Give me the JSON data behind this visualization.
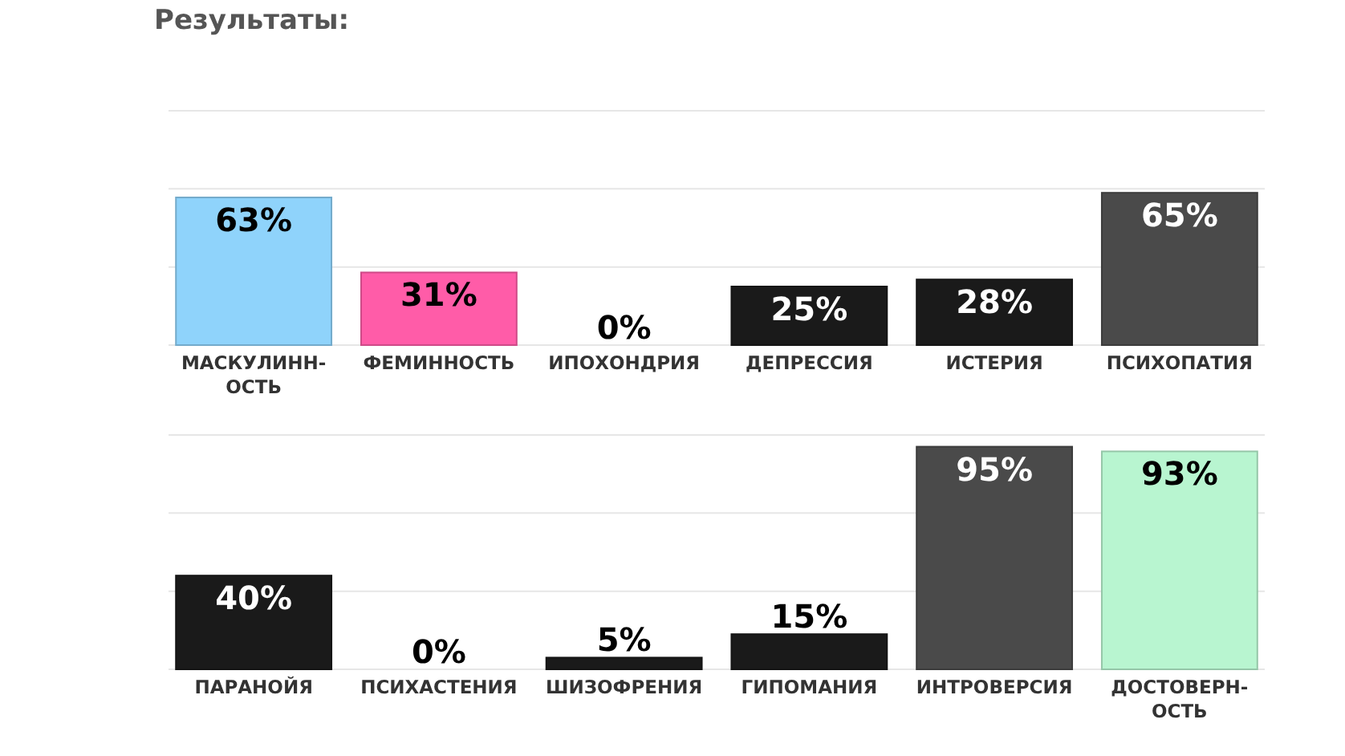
{
  "chart_data": [
    {
      "type": "bar",
      "title": "Результаты:",
      "categories": [
        "МАСКУЛИНН-ОСТЬ",
        "ФЕМИННОСТЬ",
        "ИПОХОНДРИЯ",
        "ДЕПРЕССИЯ",
        "ИСТЕРИЯ",
        "ПСИХОПАТИЯ"
      ],
      "values": [
        63,
        31,
        0,
        25,
        28,
        65
      ],
      "colors": [
        "#8fd3fb",
        "#ff5ca8",
        "#1a1a1a",
        "#1a1a1a",
        "#1a1a1a",
        "#4a4a4a"
      ],
      "value_labels": [
        "63%",
        "31%",
        "0%",
        "25%",
        "28%",
        "65%"
      ],
      "ylim": [
        0,
        100
      ],
      "yticks": [
        {
          "value": 0,
          "label": null
        },
        {
          "value": 33.3,
          "label": null
        },
        {
          "value": 66.7,
          "label": null
        },
        {
          "value": 100,
          "label": null
        }
      ],
      "grid": "y",
      "tick_labels": "x"
    },
    {
      "type": "bar",
      "categories": [
        "ПАРАНОЙЯ",
        "ПСИХАСТЕНИЯ",
        "ШИЗОФРЕНИЯ",
        "ГИПОМАНИЯ",
        "ИНТРОВЕРСИЯ",
        "ДОСТОВЕРН-ОСТЬ"
      ],
      "values": [
        40,
        0,
        5,
        15,
        95,
        93
      ],
      "colors": [
        "#1a1a1a",
        "#1a1a1a",
        "#1a1a1a",
        "#1a1a1a",
        "#4a4a4a",
        "#b8f5d0"
      ],
      "value_labels": [
        "40%",
        "0%",
        "5%",
        "15%",
        "95%",
        "93%"
      ],
      "ylim": [
        0,
        100
      ],
      "yticks": [
        {
          "value": 0,
          "label": null
        },
        {
          "value": 33.3,
          "label": null
        },
        {
          "value": 66.7,
          "label": null
        },
        {
          "value": 100,
          "label": null
        }
      ],
      "grid": "y",
      "tick_labels": "x"
    }
  ]
}
